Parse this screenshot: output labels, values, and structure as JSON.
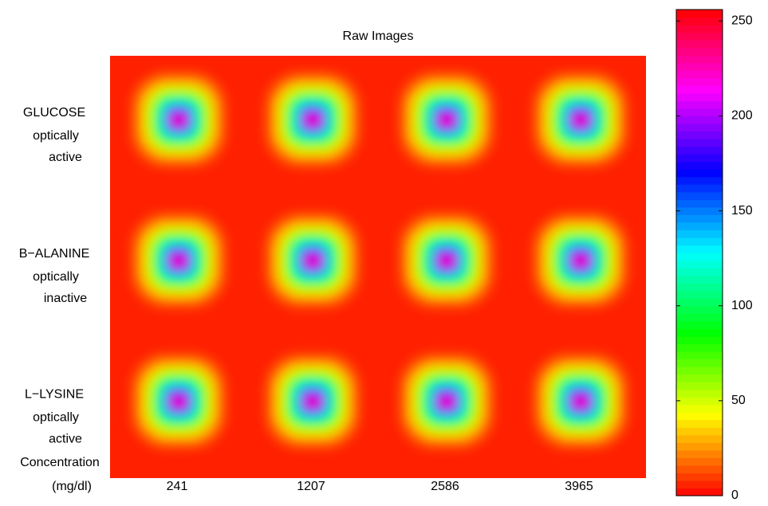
{
  "chart_data": {
    "type": "heatmap",
    "title": "Raw Images",
    "colormap": "hsv",
    "categories": [
      "241",
      "1207",
      "2586",
      "3965"
    ],
    "x_label": [
      "Concentration",
      "(mg/dl)"
    ],
    "rows": [
      {
        "name": "GLUCOSE",
        "lines": [
          "optically",
          "active"
        ]
      },
      {
        "name": "B−ALANINE",
        "lines": [
          "optically",
          "inactive"
        ]
      },
      {
        "name": "L−LYSINE",
        "lines": [
          "optically",
          "active"
        ]
      }
    ],
    "clim": [
      0,
      256
    ],
    "cticks": [
      0,
      50,
      100,
      150,
      200,
      250
    ]
  }
}
